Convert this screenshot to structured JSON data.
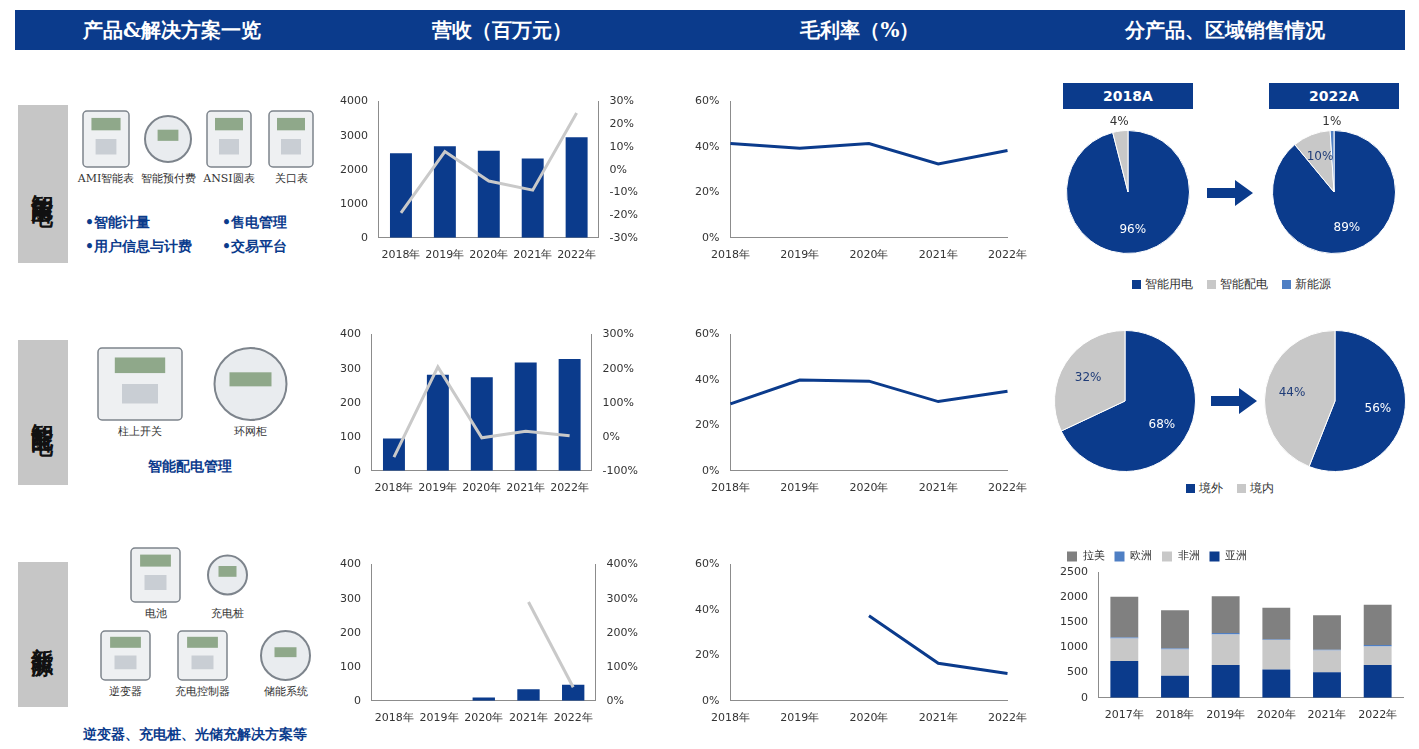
{
  "header": {
    "titles": [
      "产品&解决方案一览",
      "营收（百万元）",
      "毛利率（%）",
      "分产品、区域销售情况"
    ]
  },
  "panels": [
    {
      "label": "智能用电",
      "items": [
        "AMI智能表",
        "智能预付费",
        "ANSI圆表",
        "关口表"
      ],
      "bullets": [
        "•智能计量",
        "•售电管理",
        "•用户信息与计费",
        "•交易平台"
      ]
    },
    {
      "label": "智能配电",
      "items": [
        "柱上开关",
        "环网柜"
      ],
      "caption": "智能配电管理"
    },
    {
      "label": "新能源",
      "items": [
        "电池",
        "充电桩",
        "逆变器",
        "充电控制器",
        "储能系统"
      ],
      "caption": "逆变器、充电桩、光储充解决方案等"
    }
  ],
  "chart_data": [
    {
      "type": "bar",
      "categories": [
        "2018年",
        "2019年",
        "2020年",
        "2021年",
        "2022年"
      ],
      "series": [
        {
          "type": "bar",
          "color": "#0b3b8c",
          "values": [
            2480,
            2690,
            2560,
            2330,
            2950
          ]
        },
        {
          "type": "line",
          "color": "#c9c9c9",
          "axis": "y2",
          "values": [
            -19,
            8,
            -5,
            -9,
            25
          ]
        }
      ],
      "ylim": [
        0,
        4000
      ],
      "yticks": [
        0,
        1000,
        2000,
        3000,
        4000
      ],
      "y2lim": [
        -30,
        30
      ],
      "y2ticks": [
        {
          "value": -30,
          "label": "-30%"
        },
        {
          "value": -20,
          "label": "-20%"
        },
        {
          "value": -10,
          "label": "-10%"
        },
        {
          "value": 0,
          "label": "0%"
        },
        {
          "value": 10,
          "label": "10%"
        },
        {
          "value": 20,
          "label": "20%"
        },
        {
          "value": 30,
          "label": "30%"
        }
      ],
      "grid": false
    },
    {
      "type": "line",
      "categories": [
        "2018年",
        "2019年",
        "2020年",
        "2021年",
        "2022年"
      ],
      "color": "#0b3b8c",
      "values": [
        41.5,
        39.5,
        41.5,
        32.5,
        38.5
      ],
      "ylim": [
        0,
        60
      ],
      "yticks": [
        {
          "value": 0,
          "label": "0%"
        },
        {
          "value": 20,
          "label": "20%"
        },
        {
          "value": 40,
          "label": "40%"
        },
        {
          "value": 60,
          "label": "60%"
        }
      ],
      "grid": false
    },
    {
      "type": "pie",
      "categories": [
        "智能用电",
        "智能配电",
        "新能源"
      ],
      "colors": [
        "#0b3b8c",
        "#c8c8c8",
        "#4f7fc4"
      ],
      "series": [
        {
          "name": "2018A",
          "values": [
            96,
            4,
            null
          ],
          "value_labels": [
            "96%",
            "4%",
            null
          ]
        },
        {
          "name": "2022A",
          "values": [
            89,
            10,
            1
          ],
          "value_labels": [
            "89%",
            "10%",
            "1%"
          ]
        }
      ],
      "legend": "bottom",
      "data_labels": true
    },
    {
      "type": "bar",
      "categories": [
        "2018年",
        "2019年",
        "2020年",
        "2021年",
        "2022年"
      ],
      "series": [
        {
          "type": "bar",
          "color": "#0b3b8c",
          "values": [
            95,
            282,
            275,
            318,
            328
          ]
        },
        {
          "type": "line",
          "color": "#c9c9c9",
          "axis": "y2",
          "values": [
            -60,
            205,
            -3,
            16,
            3
          ]
        }
      ],
      "ylim": [
        0,
        400
      ],
      "yticks": [
        0,
        100,
        200,
        300,
        400
      ],
      "y2lim": [
        -100,
        300
      ],
      "y2ticks": [
        {
          "value": -100,
          "label": "-100%"
        },
        {
          "value": 0,
          "label": "0%"
        },
        {
          "value": 100,
          "label": "100%"
        },
        {
          "value": 200,
          "label": "200%"
        },
        {
          "value": 300,
          "label": "300%"
        }
      ],
      "grid": false
    },
    {
      "type": "line",
      "categories": [
        "2018年",
        "2019年",
        "2020年",
        "2021年",
        "2022年"
      ],
      "color": "#0b3b8c",
      "values": [
        29.5,
        40,
        39.5,
        30.5,
        35
      ],
      "ylim": [
        0,
        60
      ],
      "yticks": [
        {
          "value": 0,
          "label": "0%"
        },
        {
          "value": 20,
          "label": "20%"
        },
        {
          "value": 40,
          "label": "40%"
        },
        {
          "value": 60,
          "label": "60%"
        }
      ],
      "grid": false
    },
    {
      "type": "pie",
      "categories": [
        "境外",
        "境内"
      ],
      "colors": [
        "#0b3b8c",
        "#c8c8c8"
      ],
      "series": [
        {
          "values": [
            68,
            32
          ],
          "value_labels": [
            "68%",
            "32%"
          ]
        },
        {
          "values": [
            56,
            44
          ],
          "value_labels": [
            "56%",
            "44%"
          ]
        }
      ],
      "legend": "bottom",
      "data_labels": true
    },
    {
      "type": "bar",
      "categories": [
        "2018年",
        "2019年",
        "2020年",
        "2021年",
        "2022年"
      ],
      "series": [
        {
          "type": "bar",
          "color": "#0b3b8c",
          "values": [
            0,
            0,
            10,
            34,
            47
          ]
        },
        {
          "type": "line",
          "color": "#c9c9c9",
          "axis": "y2",
          "values": [
            null,
            null,
            null,
            290,
            40
          ]
        }
      ],
      "ylim": [
        0,
        400
      ],
      "yticks": [
        0,
        100,
        200,
        300,
        400
      ],
      "y2lim": [
        0,
        400
      ],
      "y2ticks": [
        {
          "value": 0,
          "label": "0%"
        },
        {
          "value": 100,
          "label": "100%"
        },
        {
          "value": 200,
          "label": "200%"
        },
        {
          "value": 300,
          "label": "300%"
        },
        {
          "value": 400,
          "label": "400%"
        }
      ],
      "grid": false
    },
    {
      "type": "line",
      "categories": [
        "2018年",
        "2019年",
        "2020年",
        "2021年",
        "2022年"
      ],
      "color": "#0b3b8c",
      "values": [
        null,
        null,
        37.5,
        16.5,
        12
      ],
      "ylim": [
        0,
        60
      ],
      "yticks": [
        {
          "value": 0,
          "label": "0%"
        },
        {
          "value": 20,
          "label": "20%"
        },
        {
          "value": 40,
          "label": "40%"
        },
        {
          "value": 60,
          "label": "60%"
        }
      ],
      "grid": false
    },
    {
      "type": "bar",
      "stacked": true,
      "categories": [
        "2017年",
        "2018年",
        "2019年",
        "2020年",
        "2021年",
        "2022年"
      ],
      "series": [
        {
          "name": "拉美",
          "color": "#808080",
          "values": [
            810,
            760,
            730,
            630,
            685,
            800
          ]
        },
        {
          "name": "欧洲",
          "color": "#4f7fc4",
          "values": [
            20,
            20,
            30,
            10,
            15,
            30
          ]
        },
        {
          "name": "非洲",
          "color": "#c8c8c8",
          "values": [
            450,
            520,
            610,
            590,
            430,
            370
          ]
        },
        {
          "name": "亚洲",
          "color": "#0b3b8c",
          "values": [
            730,
            440,
            650,
            560,
            510,
            650
          ]
        }
      ],
      "ylim": [
        0,
        2500
      ],
      "yticks": [
        0,
        500,
        1000,
        1500,
        2000,
        2500
      ],
      "legend": "top",
      "grid": false
    }
  ]
}
